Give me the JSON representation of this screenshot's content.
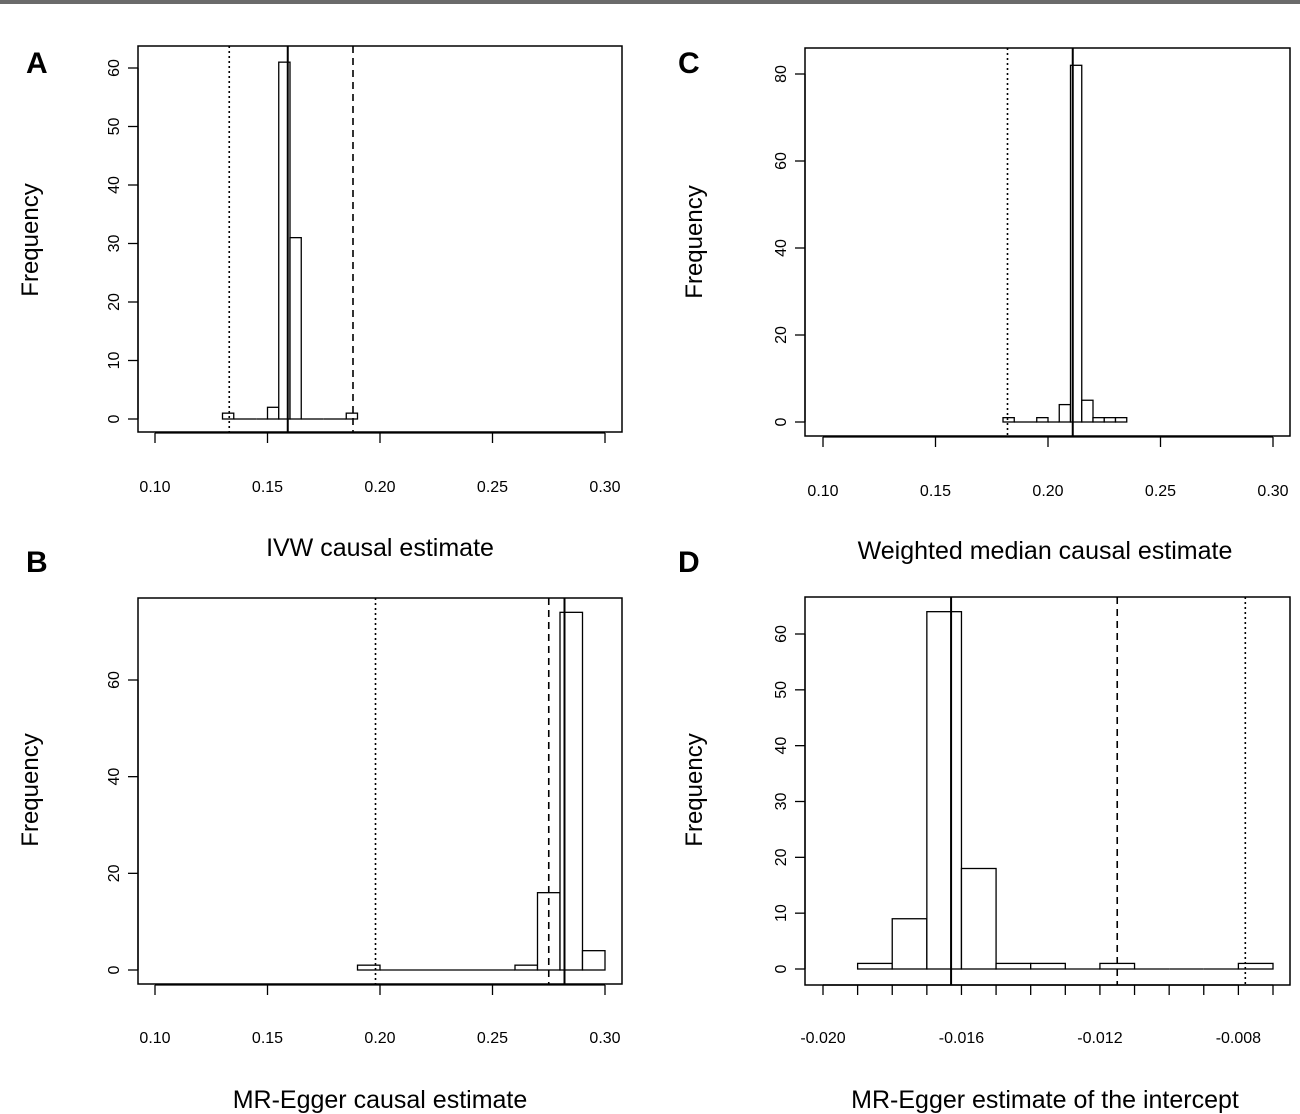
{
  "chart_data": [
    {
      "panel": "A",
      "type": "bar",
      "xlabel": "IVW causal estimate",
      "ylabel": "Frequency",
      "xlim": [
        0.1,
        0.3
      ],
      "ylim": [
        0,
        65
      ],
      "xticks": [
        "0.10",
        "0.15",
        "0.20",
        "0.25",
        "0.30"
      ],
      "yticks": [
        "0",
        "10",
        "20",
        "30",
        "40",
        "50",
        "60"
      ],
      "bins": [
        {
          "x0": 0.13,
          "x1": 0.135,
          "count": 1
        },
        {
          "x0": 0.135,
          "x1": 0.14,
          "count": 0
        },
        {
          "x0": 0.14,
          "x1": 0.145,
          "count": 0
        },
        {
          "x0": 0.145,
          "x1": 0.15,
          "count": 0
        },
        {
          "x0": 0.15,
          "x1": 0.155,
          "count": 2
        },
        {
          "x0": 0.155,
          "x1": 0.16,
          "count": 61
        },
        {
          "x0": 0.16,
          "x1": 0.165,
          "count": 31
        },
        {
          "x0": 0.165,
          "x1": 0.17,
          "count": 0
        },
        {
          "x0": 0.17,
          "x1": 0.175,
          "count": 0
        },
        {
          "x0": 0.175,
          "x1": 0.18,
          "count": 0
        },
        {
          "x0": 0.18,
          "x1": 0.185,
          "count": 0
        },
        {
          "x0": 0.185,
          "x1": 0.19,
          "count": 1
        }
      ],
      "vlines": [
        {
          "x": 0.133,
          "style": "dotted"
        },
        {
          "x": 0.159,
          "style": "solid"
        },
        {
          "x": 0.188,
          "style": "dashed"
        }
      ]
    },
    {
      "panel": "B",
      "type": "bar",
      "xlabel": "MR-Egger causal estimate",
      "ylabel": "Frequency",
      "xlim": [
        0.1,
        0.3
      ],
      "ylim": [
        0,
        75
      ],
      "xticks": [
        "0.10",
        "0.15",
        "0.20",
        "0.25",
        "0.30"
      ],
      "yticks": [
        "0",
        "20",
        "40",
        "60"
      ],
      "bins": [
        {
          "x0": 0.19,
          "x1": 0.2,
          "count": 1
        },
        {
          "x0": 0.2,
          "x1": 0.21,
          "count": 0
        },
        {
          "x0": 0.21,
          "x1": 0.22,
          "count": 0
        },
        {
          "x0": 0.22,
          "x1": 0.23,
          "count": 0
        },
        {
          "x0": 0.23,
          "x1": 0.24,
          "count": 0
        },
        {
          "x0": 0.24,
          "x1": 0.25,
          "count": 0
        },
        {
          "x0": 0.25,
          "x1": 0.26,
          "count": 0
        },
        {
          "x0": 0.26,
          "x1": 0.27,
          "count": 1
        },
        {
          "x0": 0.27,
          "x1": 0.28,
          "count": 16
        },
        {
          "x0": 0.28,
          "x1": 0.29,
          "count": 74
        },
        {
          "x0": 0.29,
          "x1": 0.3,
          "count": 4
        }
      ],
      "vlines": [
        {
          "x": 0.198,
          "style": "dotted"
        },
        {
          "x": 0.275,
          "style": "dashed"
        },
        {
          "x": 0.282,
          "style": "solid"
        }
      ]
    },
    {
      "panel": "C",
      "type": "bar",
      "xlabel": "Weighted median causal estimate",
      "ylabel": "Frequency",
      "xlim": [
        0.1,
        0.3
      ],
      "ylim": [
        0,
        85
      ],
      "xticks": [
        "0.10",
        "0.15",
        "0.20",
        "0.25",
        "0.30"
      ],
      "yticks": [
        "0",
        "20",
        "40",
        "60",
        "80"
      ],
      "bins": [
        {
          "x0": 0.18,
          "x1": 0.185,
          "count": 1
        },
        {
          "x0": 0.185,
          "x1": 0.19,
          "count": 0
        },
        {
          "x0": 0.19,
          "x1": 0.195,
          "count": 0
        },
        {
          "x0": 0.195,
          "x1": 0.2,
          "count": 1
        },
        {
          "x0": 0.2,
          "x1": 0.205,
          "count": 0
        },
        {
          "x0": 0.205,
          "x1": 0.21,
          "count": 4
        },
        {
          "x0": 0.21,
          "x1": 0.215,
          "count": 82
        },
        {
          "x0": 0.215,
          "x1": 0.22,
          "count": 5
        },
        {
          "x0": 0.22,
          "x1": 0.225,
          "count": 1
        },
        {
          "x0": 0.225,
          "x1": 0.23,
          "count": 1
        },
        {
          "x0": 0.23,
          "x1": 0.235,
          "count": 1
        }
      ],
      "vlines": [
        {
          "x": 0.182,
          "style": "dotted"
        },
        {
          "x": 0.211,
          "style": "solid"
        }
      ]
    },
    {
      "panel": "D",
      "type": "bar",
      "xlabel": "MR-Egger estimate of the intercept",
      "ylabel": "Frequency",
      "xlim": [
        -0.02,
        -0.007
      ],
      "ylim": [
        0,
        65
      ],
      "xticks": [
        "-0.020",
        "-0.016",
        "-0.012",
        "-0.008"
      ],
      "yticks": [
        "0",
        "10",
        "20",
        "30",
        "40",
        "50",
        "60"
      ],
      "bins": [
        {
          "x0": -0.019,
          "x1": -0.018,
          "count": 1
        },
        {
          "x0": -0.018,
          "x1": -0.017,
          "count": 9
        },
        {
          "x0": -0.017,
          "x1": -0.016,
          "count": 64
        },
        {
          "x0": -0.016,
          "x1": -0.015,
          "count": 18
        },
        {
          "x0": -0.015,
          "x1": -0.014,
          "count": 1
        },
        {
          "x0": -0.014,
          "x1": -0.013,
          "count": 1
        },
        {
          "x0": -0.013,
          "x1": -0.012,
          "count": 0
        },
        {
          "x0": -0.012,
          "x1": -0.011,
          "count": 1
        },
        {
          "x0": -0.011,
          "x1": -0.01,
          "count": 0
        },
        {
          "x0": -0.01,
          "x1": -0.009,
          "count": 0
        },
        {
          "x0": -0.009,
          "x1": -0.008,
          "count": 0
        },
        {
          "x0": -0.008,
          "x1": -0.007,
          "count": 1
        }
      ],
      "vlines": [
        {
          "x": -0.0163,
          "style": "solid"
        },
        {
          "x": -0.0115,
          "style": "dashed"
        },
        {
          "x": -0.0078,
          "style": "dotted"
        }
      ]
    }
  ]
}
